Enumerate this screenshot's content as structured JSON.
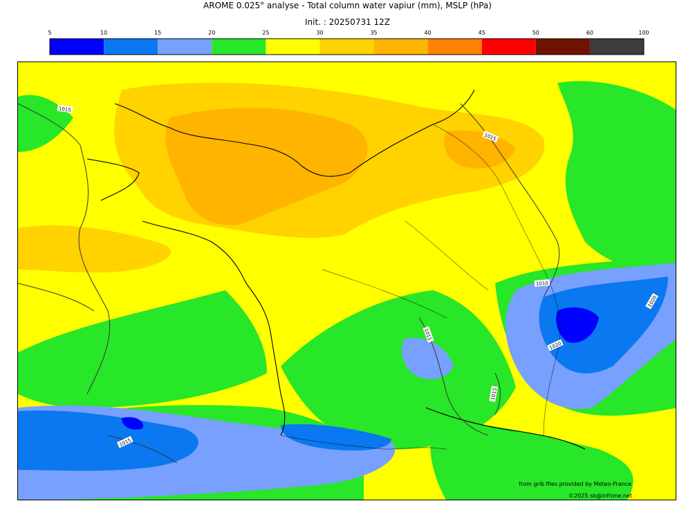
{
  "header": {
    "title": "AROME 0.025° analyse - Total column water vapiur (mm), MSLP (hPa)",
    "subtitle": "Init. : 20250731 12Z"
  },
  "legend": {
    "ticks": [
      "5",
      "10",
      "15",
      "20",
      "25",
      "30",
      "35",
      "40",
      "45",
      "50",
      "60",
      "100"
    ],
    "bins": [
      {
        "from": 5,
        "to": 10,
        "color": "#0000ff"
      },
      {
        "from": 10,
        "to": 15,
        "color": "#0a78f0"
      },
      {
        "from": 15,
        "to": 20,
        "color": "#78a0ff"
      },
      {
        "from": 20,
        "to": 25,
        "color": "#28e628"
      },
      {
        "from": 25,
        "to": 30,
        "color": "#ffff00"
      },
      {
        "from": 30,
        "to": 35,
        "color": "#ffd200"
      },
      {
        "from": 35,
        "to": 40,
        "color": "#ffb400"
      },
      {
        "from": 40,
        "to": 45,
        "color": "#ff8200"
      },
      {
        "from": 45,
        "to": 50,
        "color": "#ff0000"
      },
      {
        "from": 50,
        "to": 60,
        "color": "#6e1400"
      },
      {
        "from": 60,
        "to": 100,
        "color": "#3c3c3c"
      }
    ]
  },
  "map": {
    "isobar_labels": [
      "1015",
      "1015",
      "1010",
      "1015",
      "1020",
      "1020",
      "1015",
      "1015"
    ]
  },
  "credits": {
    "source": "from grib files provided by Meteo-France",
    "copyright": "©2025 sb@infrone.net"
  }
}
